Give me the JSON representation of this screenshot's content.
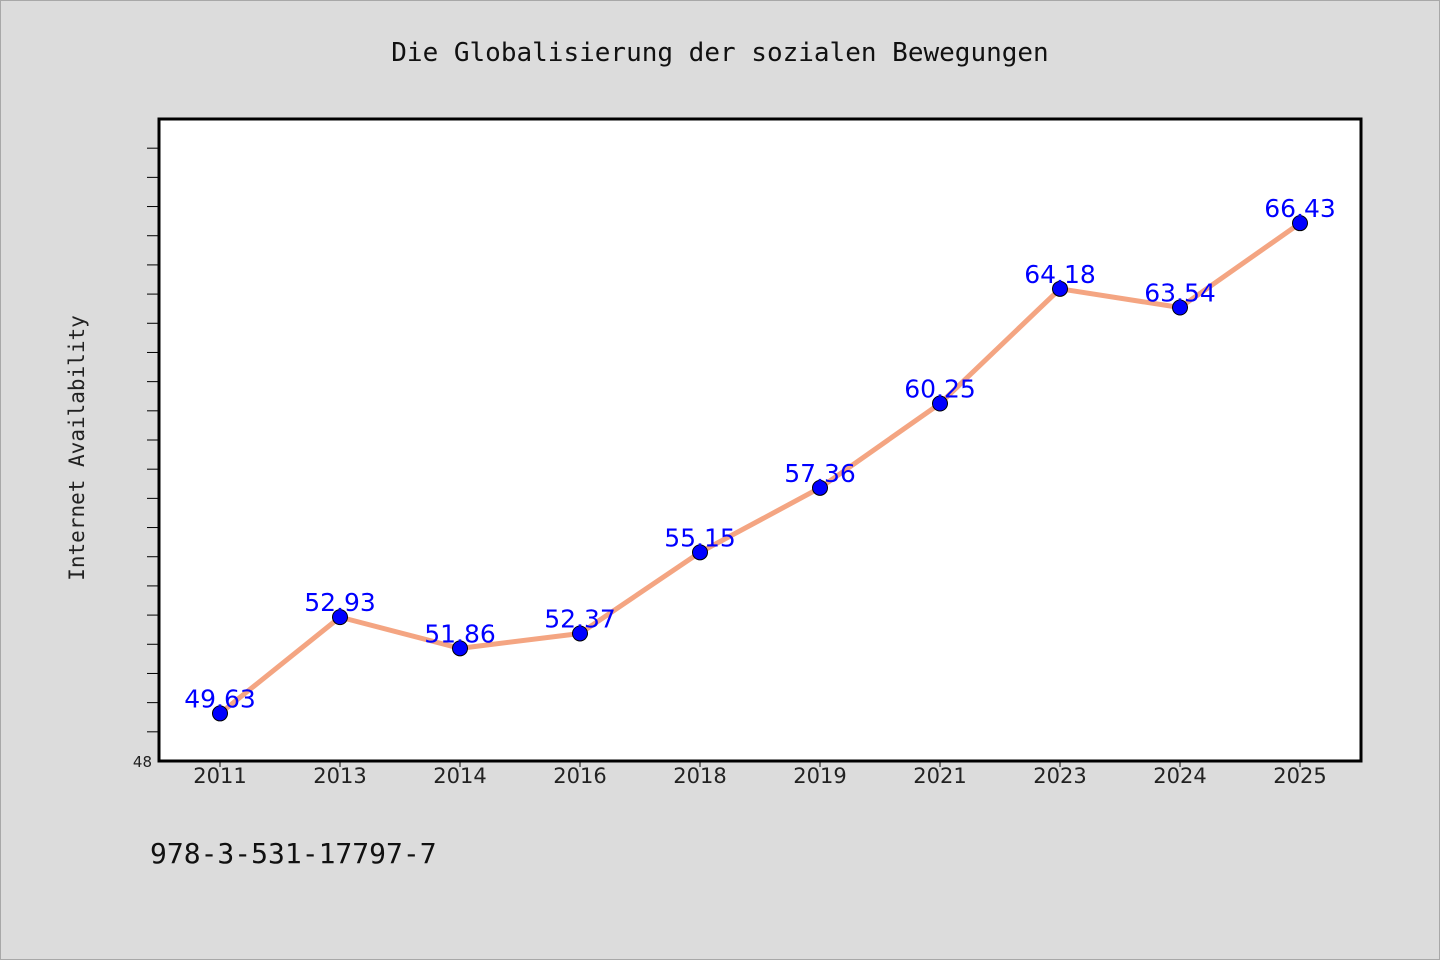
{
  "chart_data": {
    "type": "line",
    "title": "Die Globalisierung der sozialen Bewegungen",
    "xlabel": "",
    "ylabel": "Internet Availability",
    "categories": [
      "2011",
      "2013",
      "2014",
      "2016",
      "2018",
      "2019",
      "2021",
      "2023",
      "2024",
      "2025"
    ],
    "series": [
      {
        "values": [
          49.63,
          52.93,
          51.86,
          52.37,
          55.15,
          57.36,
          60.25,
          64.18,
          63.54,
          66.43
        ],
        "data_labels": [
          "49.63",
          "52.93",
          "51.86",
          "52.37",
          "55.15",
          "57.36",
          "60.25",
          "64.18",
          "63.54",
          "66.43"
        ]
      }
    ],
    "ylim": [
      48,
      70
    ],
    "y_min_label": "48",
    "grid": false,
    "legend": "none",
    "colors": {
      "line": "#f4a582",
      "marker": "#0000ff",
      "data_label": "#0000ff",
      "plot_background": "#ffffff",
      "page_background": "#dcdcdc"
    }
  },
  "footer": {
    "isbn": "978-3-531-17797-7"
  }
}
